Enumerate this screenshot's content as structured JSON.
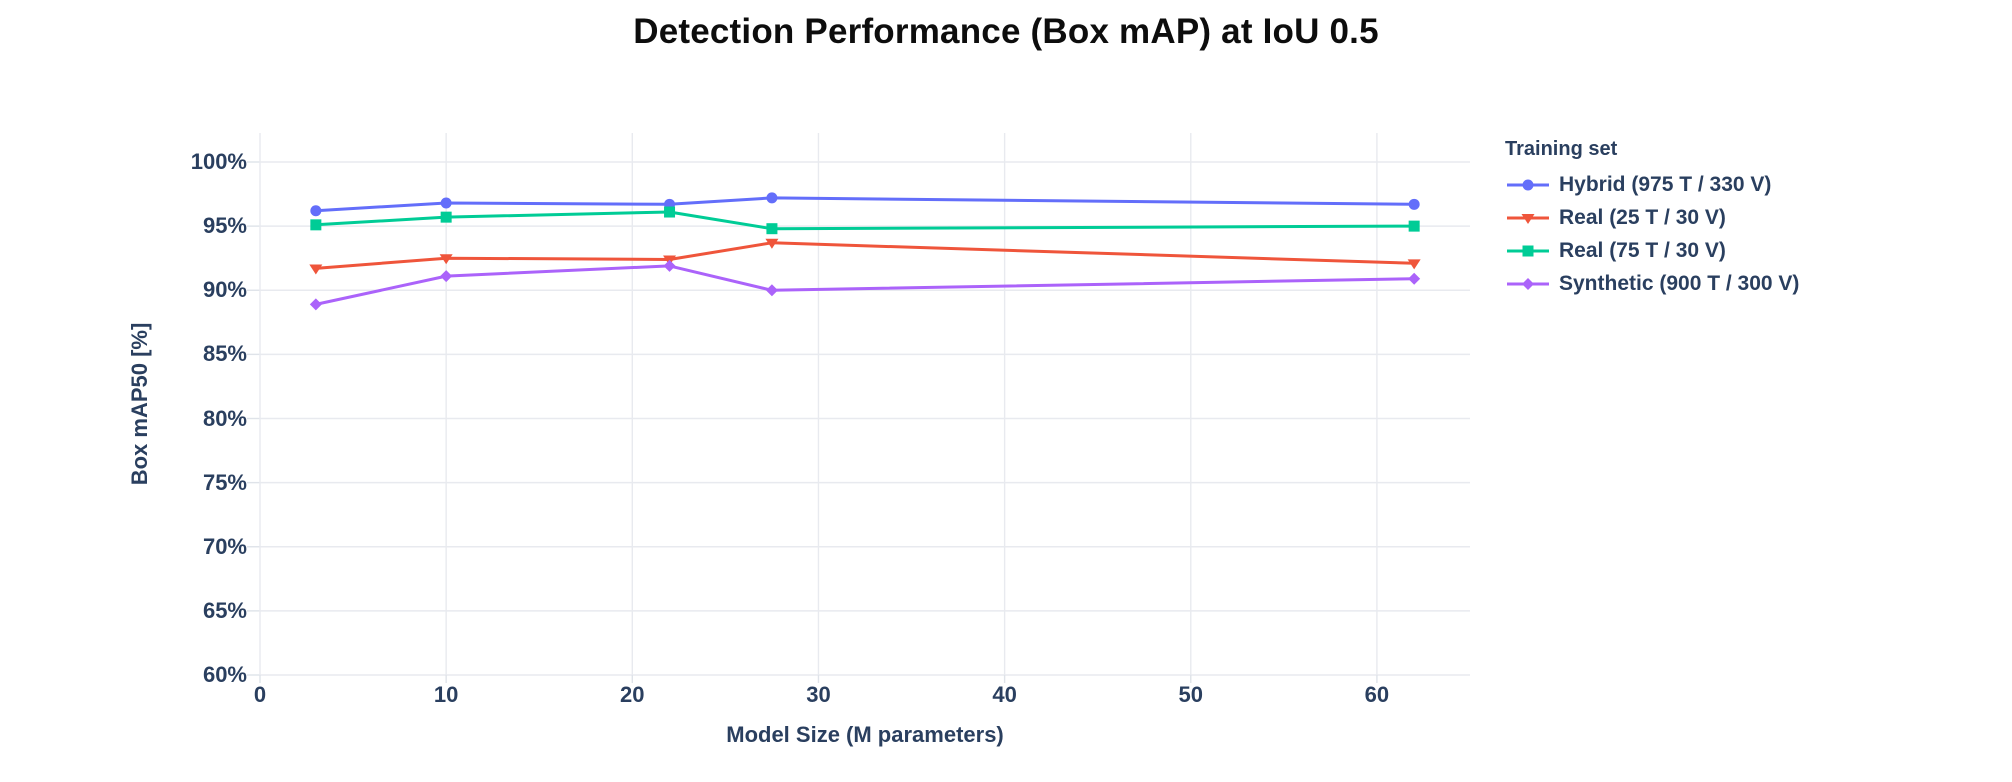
{
  "title": "Detection Performance (Box mAP) at IoU 0.5",
  "colors": {
    "title_text": "#0d0d0d",
    "axis_text": "#2a3f5f",
    "gridline": "#e8eaef",
    "tick_mark": "#dfe3e9",
    "background": "#ffffff"
  },
  "chart_data": {
    "type": "line",
    "title": "Detection Performance (Box mAP) at IoU 0.5",
    "xlabel": "Model Size (M parameters)",
    "ylabel": "Box mAP50 [%]",
    "legend_title": "Training set",
    "legend_position": "right",
    "grid": true,
    "xlim": [
      0,
      65
    ],
    "ylim": [
      60,
      100
    ],
    "x_ticks": [
      0,
      10,
      20,
      30,
      40,
      50,
      60
    ],
    "x_tick_labels": [
      "0",
      "10",
      "20",
      "30",
      "40",
      "50",
      "60"
    ],
    "y_ticks": [
      60,
      65,
      70,
      75,
      80,
      85,
      90,
      95,
      100
    ],
    "y_tick_labels": [
      "60%",
      "65%",
      "70%",
      "75%",
      "80%",
      "85%",
      "90%",
      "95%",
      "100%"
    ],
    "x": [
      3,
      10,
      22,
      27.5,
      62
    ],
    "series": [
      {
        "name": "Hybrid (975 T / 330 V)",
        "color": "#636efa",
        "marker": "circle",
        "values": [
          96.2,
          96.8,
          96.7,
          97.2,
          96.7
        ]
      },
      {
        "name": "Real (25 T / 30 V)",
        "color": "#ef553b",
        "marker": "triangle-down",
        "values": [
          91.7,
          92.5,
          92.4,
          93.7,
          92.1
        ]
      },
      {
        "name": "Real (75 T / 30 V)",
        "color": "#00cc96",
        "marker": "square",
        "values": [
          95.1,
          95.7,
          96.1,
          94.8,
          95.0
        ]
      },
      {
        "name": "Synthetic (900 T / 300 V)",
        "color": "#ab63fa",
        "marker": "diamond",
        "values": [
          88.9,
          91.1,
          91.9,
          90.0,
          90.9
        ]
      }
    ]
  }
}
